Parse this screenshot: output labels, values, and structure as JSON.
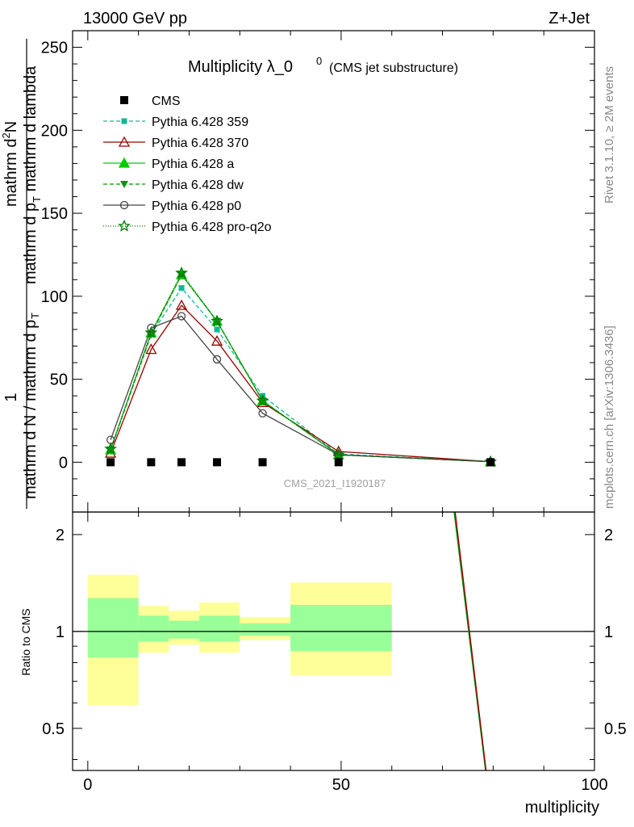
{
  "header": {
    "left": "13000 GeV pp",
    "right": "Z+Jet"
  },
  "side_labels": {
    "rivet": "Rivet 3.1.10, ≥ 2M events",
    "mcplots": "mcplots.cern.ch [arXiv:1306.3436]"
  },
  "watermark": "CMS_2021_I1920187",
  "chart_data": {
    "type": "line",
    "title_main": "Multiplicity λ_0",
    "title_sup": "0",
    "title_sub": "(CMS jet substructure)",
    "ylabel_top": {
      "numerator": "1",
      "denominator": "mathrm d N / mathrm d p",
      "subscript": "T"
    },
    "ylabel_main": {
      "line1": "mathrm d",
      "sup": "2",
      "line1b": "N",
      "line2": "mathrm d p",
      "sub2": "T",
      "line2b": " mathrm d lambda"
    },
    "xlabel": "multiplicity",
    "ratio_ylabel": "Ratio to CMS",
    "xlim": [
      -3,
      100
    ],
    "ylim": [
      -30,
      260
    ],
    "ratio_ylim": [
      0.37,
      2.35
    ],
    "x_ticks": [
      "0",
      "50",
      "100"
    ],
    "y_ticks": [
      "0",
      "50",
      "100",
      "150",
      "200",
      "250"
    ],
    "ratio_ticks": [
      "0.5",
      "1",
      "2"
    ],
    "legend": {
      "position": "top-left",
      "entries": [
        "CMS",
        "Pythia 6.428 359",
        "Pythia 6.428 370",
        "Pythia 6.428 a",
        "Pythia 6.428 dw",
        "Pythia 6.428 p0",
        "Pythia 6.428 pro-q2o"
      ]
    },
    "x": [
      4.5,
      12.5,
      18.5,
      25.5,
      34.5,
      49.5,
      79.5
    ],
    "data": {
      "name": "CMS",
      "values": [
        0,
        0,
        0,
        0,
        0,
        0,
        0
      ],
      "color": "#000000"
    },
    "series": [
      {
        "name": "Pythia 6.428 359",
        "color": "#12b898",
        "marker": "square",
        "dash": "5,3",
        "values": [
          7.5,
          77,
          105,
          80,
          40,
          5,
          0.3
        ]
      },
      {
        "name": "Pythia 6.428 370",
        "color": "#990000",
        "marker": "triangle-open",
        "dash": "",
        "values": [
          5.5,
          68,
          94.5,
          73,
          36,
          6.5,
          0.3
        ]
      },
      {
        "name": "Pythia 6.428 a",
        "color": "#00cc00",
        "marker": "triangle",
        "dash": "",
        "values": [
          7.5,
          78,
          113,
          85,
          37,
          4.5,
          0.3
        ]
      },
      {
        "name": "Pythia 6.428 dw",
        "color": "#009900",
        "marker": "triangle-down",
        "dash": "5,3",
        "values": [
          7.5,
          77,
          113,
          85,
          37,
          4.5,
          0.3
        ]
      },
      {
        "name": "Pythia 6.428 p0",
        "color": "#444444",
        "marker": "circle-open",
        "dash": "",
        "values": [
          13.5,
          81,
          88,
          62,
          29.5,
          4.5,
          0.3
        ]
      },
      {
        "name": "Pythia 6.428 pro-q2o",
        "color": "#007700",
        "marker": "star",
        "dash": "1,2",
        "values": [
          8,
          78,
          114,
          85,
          37,
          4.5,
          0.3
        ]
      }
    ],
    "ratio_bands": [
      {
        "x": [
          0,
          10
        ],
        "yellow": [
          0.59,
          1.5
        ],
        "green": [
          0.83,
          1.27
        ]
      },
      {
        "x": [
          10,
          16
        ],
        "yellow": [
          0.86,
          1.2
        ],
        "green": [
          0.93,
          1.12
        ]
      },
      {
        "x": [
          16,
          22
        ],
        "yellow": [
          0.91,
          1.16
        ],
        "green": [
          0.95,
          1.08
        ]
      },
      {
        "x": [
          22,
          30
        ],
        "yellow": [
          0.86,
          1.23
        ],
        "green": [
          0.93,
          1.12
        ]
      },
      {
        "x": [
          30,
          40
        ],
        "yellow": [
          0.94,
          1.11
        ],
        "green": [
          0.97,
          1.06
        ]
      },
      {
        "x": [
          40,
          60
        ],
        "yellow": [
          0.73,
          1.42
        ],
        "green": [
          0.87,
          1.21
        ]
      }
    ],
    "ratio_lines": [
      {
        "color": "#009900",
        "from": [
          72.3,
          2.35
        ],
        "to": [
          78.5,
          0.37
        ]
      },
      {
        "color": "#990000",
        "from": [
          72.5,
          2.35
        ],
        "to": [
          78.6,
          0.37
        ]
      }
    ]
  }
}
